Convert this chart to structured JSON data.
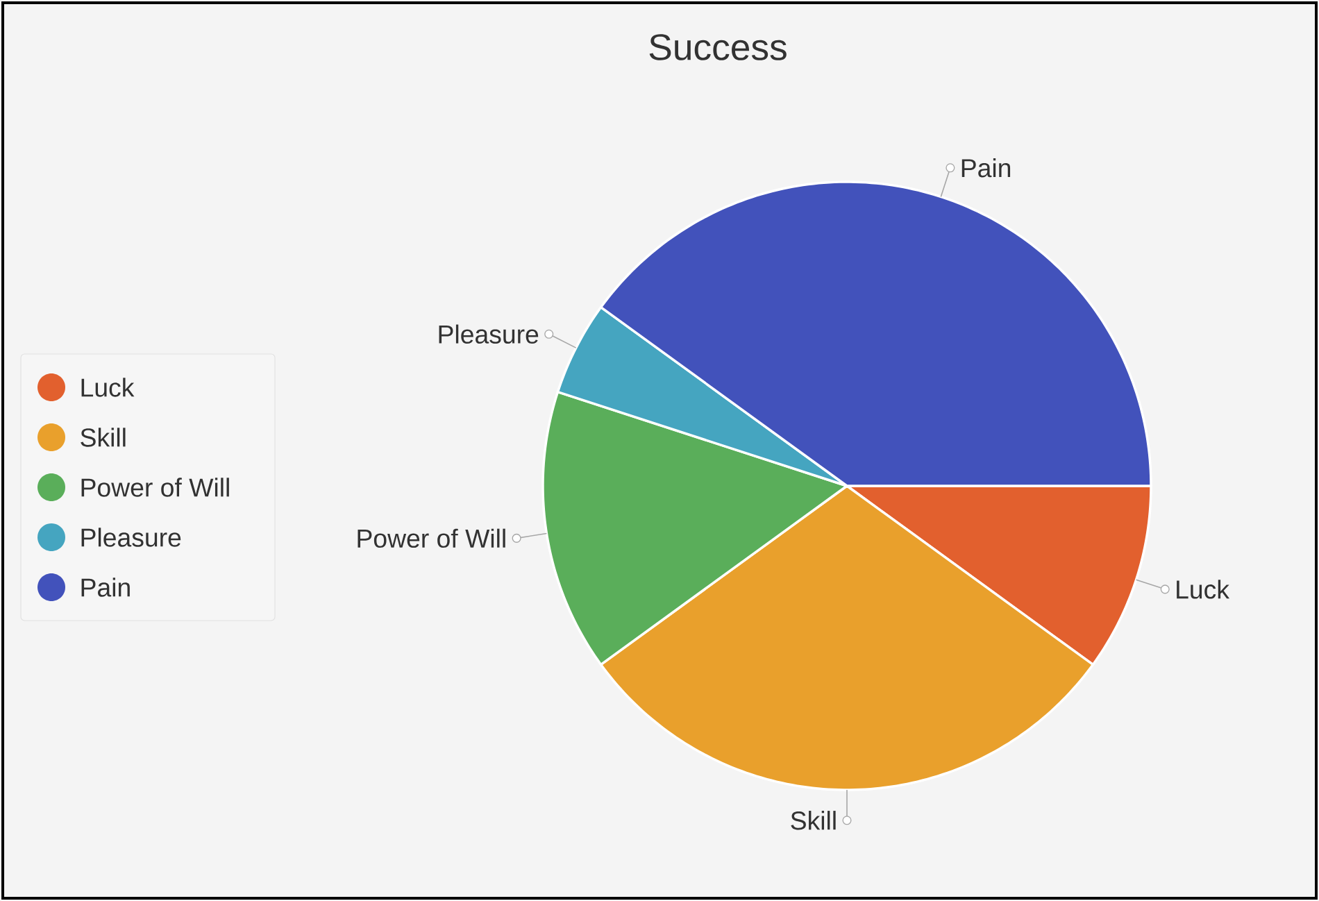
{
  "chart_data": {
    "type": "pie",
    "title": "Success",
    "categories": [
      "Luck",
      "Skill",
      "Power of Will",
      "Pleasure",
      "Pain"
    ],
    "values": [
      10,
      30,
      15,
      5,
      40
    ],
    "colors": [
      "#e2602e",
      "#e9a02c",
      "#5aae5a",
      "#45a5c0",
      "#4252bb"
    ],
    "legend": "left"
  }
}
